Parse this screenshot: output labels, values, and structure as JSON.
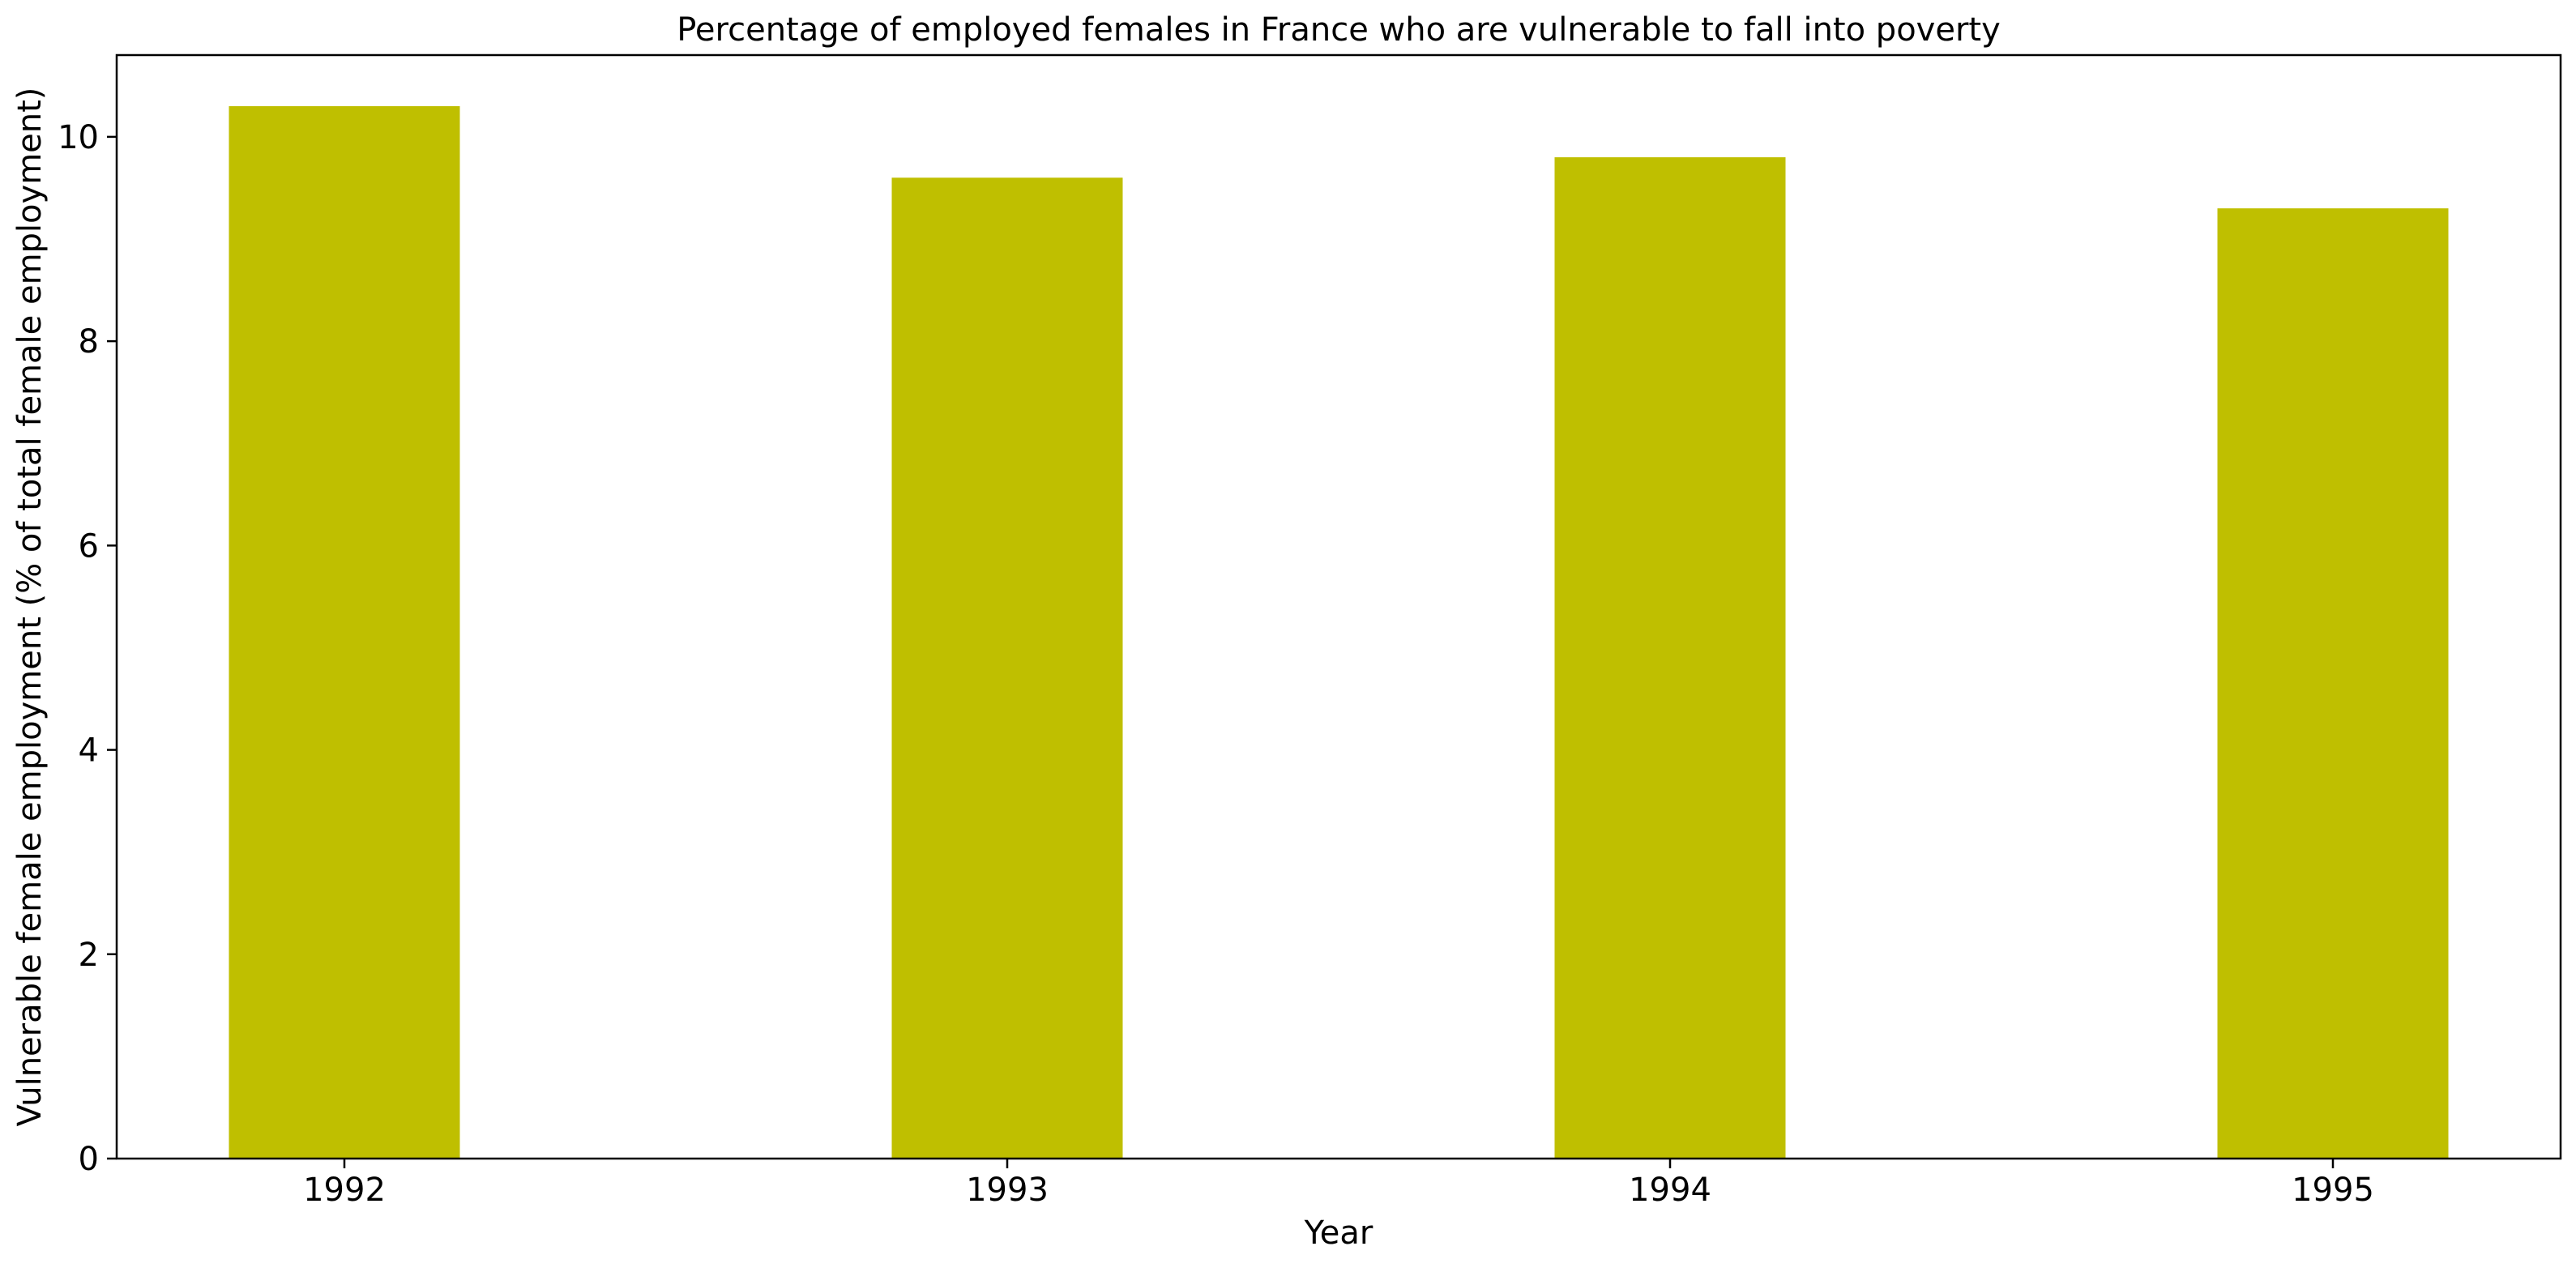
{
  "chart_data": {
    "type": "bar",
    "title": "Percentage of employed females in France who are vulnerable to fall into poverty",
    "xlabel": "Year",
    "ylabel": "Vulnerable female employment (% of total female employment)",
    "categories": [
      "1992",
      "1993",
      "1994",
      "1995"
    ],
    "values": [
      10.3,
      9.6,
      9.8,
      9.3
    ],
    "ylim": [
      0,
      10.8
    ],
    "yticks": [
      0,
      2,
      4,
      6,
      8,
      10
    ],
    "bar_color": "#bfbf00",
    "grid": false,
    "legend": "none"
  }
}
